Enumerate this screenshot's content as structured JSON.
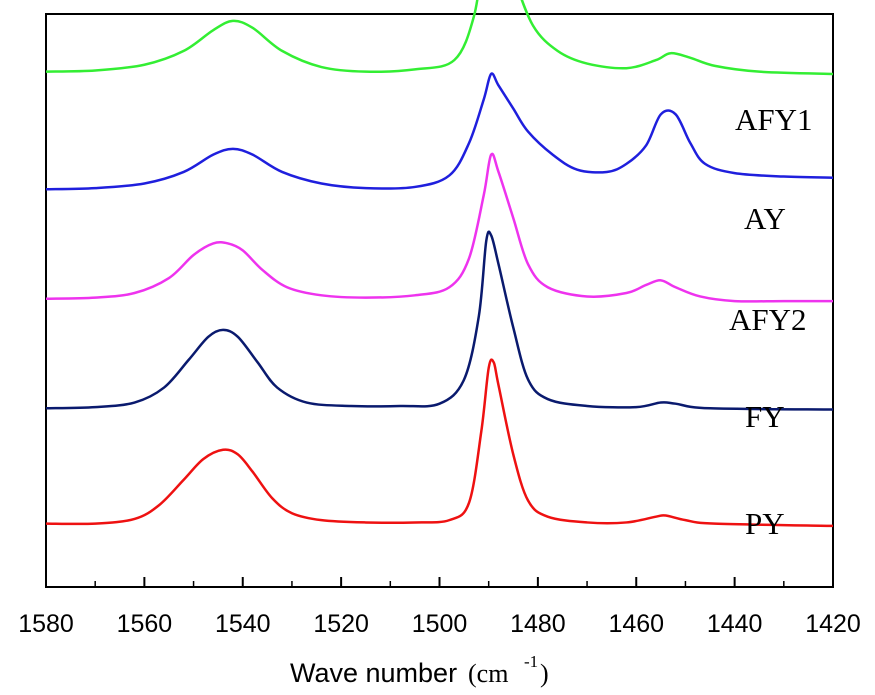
{
  "chart_data": {
    "type": "line",
    "title": "",
    "xlabel": {
      "main": "Wave number",
      "unit_open": "(cm",
      "unit_sup": "-1",
      "unit_close": ")"
    },
    "ylabel": "",
    "xlim": [
      1580,
      1420
    ],
    "x_reversed": true,
    "x_ticks": [
      1580,
      1560,
      1540,
      1520,
      1500,
      1480,
      1460,
      1440,
      1420
    ],
    "y_ticks_shown": false,
    "grid": false,
    "legend": "none",
    "offset_traces": true,
    "series": [
      {
        "name": "AFY1",
        "color": "#33ee33",
        "baseline": 1.0,
        "points": [
          [
            1580,
            0.02
          ],
          [
            1570,
            0.03
          ],
          [
            1560,
            0.08
          ],
          [
            1552,
            0.2
          ],
          [
            1546,
            0.38
          ],
          [
            1542,
            0.46
          ],
          [
            1538,
            0.4
          ],
          [
            1532,
            0.2
          ],
          [
            1524,
            0.06
          ],
          [
            1515,
            0.02
          ],
          [
            1505,
            0.04
          ],
          [
            1497,
            0.12
          ],
          [
            1493,
            0.5
          ],
          [
            1491,
            1.05
          ],
          [
            1489.5,
            1.42
          ],
          [
            1488,
            1.22
          ],
          [
            1485,
            0.85
          ],
          [
            1481,
            0.42
          ],
          [
            1476,
            0.2
          ],
          [
            1470,
            0.09
          ],
          [
            1462,
            0.05
          ],
          [
            1456,
            0.12
          ],
          [
            1453,
            0.18
          ],
          [
            1449,
            0.14
          ],
          [
            1444,
            0.07
          ],
          [
            1435,
            0.02
          ],
          [
            1420,
            0.0
          ]
        ]
      },
      {
        "name": "AY",
        "color": "#1f1fdd",
        "baseline": 0.0,
        "points": [
          [
            1580,
            0.0
          ],
          [
            1570,
            0.01
          ],
          [
            1560,
            0.05
          ],
          [
            1552,
            0.15
          ],
          [
            1546,
            0.3
          ],
          [
            1542,
            0.35
          ],
          [
            1538,
            0.3
          ],
          [
            1532,
            0.15
          ],
          [
            1524,
            0.05
          ],
          [
            1515,
            0.01
          ],
          [
            1505,
            0.02
          ],
          [
            1498,
            0.12
          ],
          [
            1494,
            0.4
          ],
          [
            1491,
            0.78
          ],
          [
            1489.5,
            1.0
          ],
          [
            1488,
            0.9
          ],
          [
            1485,
            0.7
          ],
          [
            1482,
            0.5
          ],
          [
            1477,
            0.3
          ],
          [
            1472,
            0.17
          ],
          [
            1466,
            0.15
          ],
          [
            1462,
            0.22
          ],
          [
            1458,
            0.38
          ],
          [
            1455,
            0.65
          ],
          [
            1452,
            0.65
          ],
          [
            1449,
            0.4
          ],
          [
            1446,
            0.22
          ],
          [
            1440,
            0.14
          ],
          [
            1430,
            0.11
          ],
          [
            1420,
            0.1
          ]
        ]
      },
      {
        "name": "AFY2",
        "color": "#ee33ee",
        "baseline": -0.95,
        "points": [
          [
            1580,
            0.0
          ],
          [
            1570,
            0.01
          ],
          [
            1562,
            0.05
          ],
          [
            1555,
            0.18
          ],
          [
            1550,
            0.38
          ],
          [
            1546,
            0.48
          ],
          [
            1543,
            0.48
          ],
          [
            1540,
            0.42
          ],
          [
            1536,
            0.25
          ],
          [
            1531,
            0.1
          ],
          [
            1524,
            0.03
          ],
          [
            1515,
            0.01
          ],
          [
            1505,
            0.03
          ],
          [
            1498,
            0.1
          ],
          [
            1494,
            0.35
          ],
          [
            1491,
            0.9
          ],
          [
            1489.5,
            1.25
          ],
          [
            1488,
            1.1
          ],
          [
            1485,
            0.7
          ],
          [
            1482,
            0.3
          ],
          [
            1478,
            0.1
          ],
          [
            1470,
            0.02
          ],
          [
            1462,
            0.05
          ],
          [
            1458,
            0.12
          ],
          [
            1455,
            0.16
          ],
          [
            1452,
            0.1
          ],
          [
            1447,
            0.02
          ],
          [
            1440,
            -0.02
          ],
          [
            1430,
            -0.02
          ],
          [
            1420,
            -0.02
          ]
        ]
      },
      {
        "name": "FY",
        "color": "#0a1a6e",
        "baseline": -1.9,
        "points": [
          [
            1580,
            0.0
          ],
          [
            1570,
            0.01
          ],
          [
            1562,
            0.05
          ],
          [
            1556,
            0.18
          ],
          [
            1551,
            0.42
          ],
          [
            1547,
            0.62
          ],
          [
            1544,
            0.68
          ],
          [
            1541,
            0.62
          ],
          [
            1537,
            0.4
          ],
          [
            1533,
            0.18
          ],
          [
            1527,
            0.05
          ],
          [
            1518,
            0.02
          ],
          [
            1508,
            0.02
          ],
          [
            1500,
            0.04
          ],
          [
            1495,
            0.25
          ],
          [
            1492,
            0.8
          ],
          [
            1490.5,
            1.45
          ],
          [
            1489.5,
            1.5
          ],
          [
            1488,
            1.25
          ],
          [
            1485,
            0.7
          ],
          [
            1482,
            0.25
          ],
          [
            1478,
            0.08
          ],
          [
            1470,
            0.02
          ],
          [
            1460,
            0.01
          ],
          [
            1455,
            0.05
          ],
          [
            1452,
            0.04
          ],
          [
            1445,
            0.0
          ],
          [
            1420,
            -0.01
          ]
        ]
      },
      {
        "name": "PY",
        "color": "#ee1111",
        "baseline": -2.9,
        "points": [
          [
            1580,
            0.0
          ],
          [
            1570,
            0.0
          ],
          [
            1562,
            0.04
          ],
          [
            1557,
            0.16
          ],
          [
            1552,
            0.38
          ],
          [
            1548,
            0.56
          ],
          [
            1544,
            0.64
          ],
          [
            1541,
            0.6
          ],
          [
            1538,
            0.45
          ],
          [
            1534,
            0.22
          ],
          [
            1530,
            0.09
          ],
          [
            1524,
            0.03
          ],
          [
            1515,
            0.01
          ],
          [
            1505,
            0.01
          ],
          [
            1498,
            0.03
          ],
          [
            1494,
            0.18
          ],
          [
            1491.5,
            0.8
          ],
          [
            1490,
            1.35
          ],
          [
            1489,
            1.4
          ],
          [
            1488,
            1.2
          ],
          [
            1485,
            0.6
          ],
          [
            1482,
            0.2
          ],
          [
            1478,
            0.06
          ],
          [
            1470,
            0.01
          ],
          [
            1462,
            0.01
          ],
          [
            1456,
            0.06
          ],
          [
            1454,
            0.07
          ],
          [
            1450,
            0.03
          ],
          [
            1444,
            0.0
          ],
          [
            1420,
            -0.02
          ]
        ]
      }
    ],
    "series_label_text": {
      "AFY1": "AFY1",
      "AY": "AY",
      "AFY2": "AFY2",
      "FY": "FY",
      "PY": "PY"
    }
  }
}
